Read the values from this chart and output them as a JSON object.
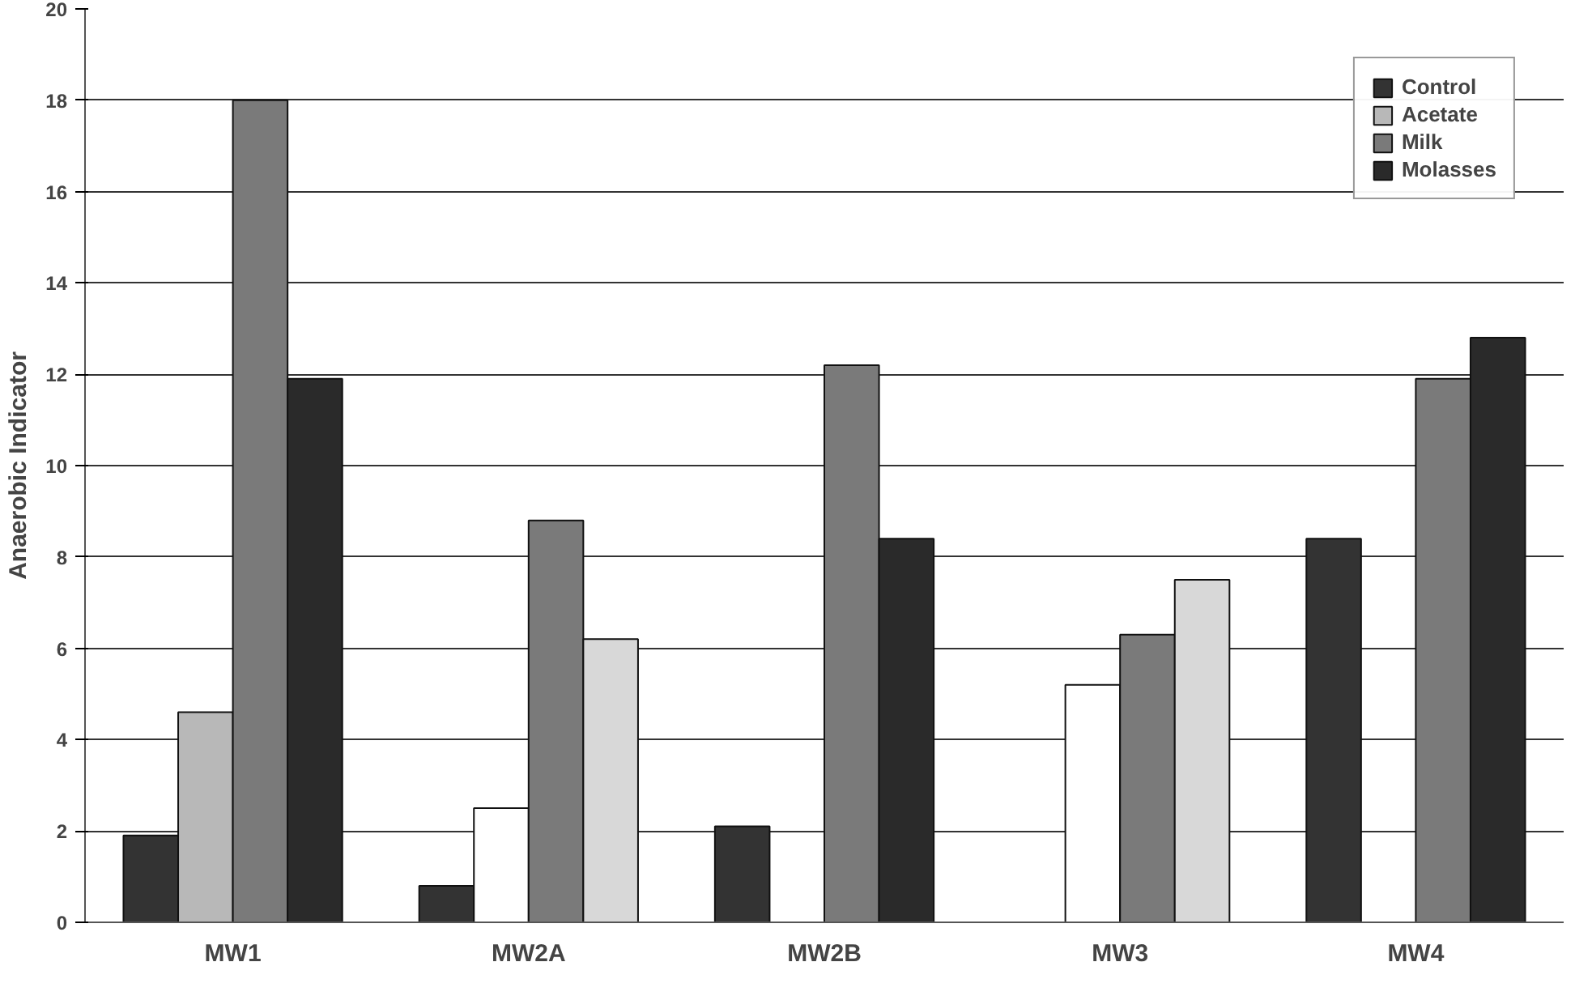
{
  "chart_data": {
    "type": "bar",
    "ylabel": "Anaerobic Indicator",
    "categories": [
      "MW1",
      "MW2A",
      "MW2B",
      "MW3",
      "MW4"
    ],
    "series": [
      {
        "name": "Control",
        "color": "#333333",
        "values": [
          1.9,
          0.8,
          2.1,
          null,
          8.4
        ]
      },
      {
        "name": "Acetate",
        "color": "#b8b8b8",
        "colors": [
          "#b8b8b8",
          "#ffffff",
          "#ffffff",
          "#ffffff",
          "#ffffff"
        ],
        "values": [
          4.6,
          2.5,
          null,
          5.2,
          null
        ]
      },
      {
        "name": "Milk",
        "color": "#7a7a7a",
        "values": [
          18.0,
          8.8,
          12.2,
          6.3,
          11.9
        ]
      },
      {
        "name": "Molasses",
        "color": "#2a2a2a",
        "colors": [
          "#2a2a2a",
          "#d8d8d8",
          "#2a2a2a",
          "#d8d8d8",
          "#2a2a2a"
        ],
        "values": [
          11.9,
          6.2,
          8.4,
          7.5,
          12.8
        ]
      }
    ],
    "ylim": [
      0,
      20
    ],
    "yticks": [
      0,
      2,
      4,
      6,
      8,
      10,
      12,
      14,
      16,
      18,
      20
    ],
    "grid": "y",
    "legend": "top right"
  }
}
